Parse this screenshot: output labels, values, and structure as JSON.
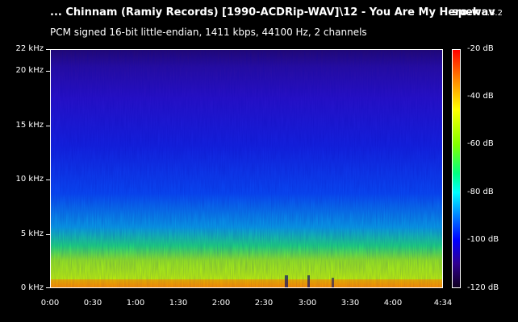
{
  "header": {
    "title": "... Chinnam (Ramiy Records) [1990-ACDRip-WAV]\\12 - You Are My Hero.wav",
    "brand": "spek",
    "version": "0.8.2",
    "description": "PCM signed 16-bit little-endian, 1411 kbps, 44100 Hz, 2 channels"
  },
  "axes": {
    "frequency_labels": [
      "22 kHz",
      "20 kHz",
      "15 kHz",
      "10 kHz",
      "5 kHz",
      "0 kHz"
    ],
    "time_labels": [
      "0:00",
      "0:30",
      "1:00",
      "1:30",
      "2:00",
      "2:30",
      "3:00",
      "3:30",
      "4:00",
      "4:34"
    ],
    "db_labels": [
      "-20 dB",
      "-40 dB",
      "-60 dB",
      "-80 dB",
      "-100 dB",
      "-120 dB"
    ]
  },
  "colors": {
    "background": "#000000",
    "text": "#ffffff"
  }
}
